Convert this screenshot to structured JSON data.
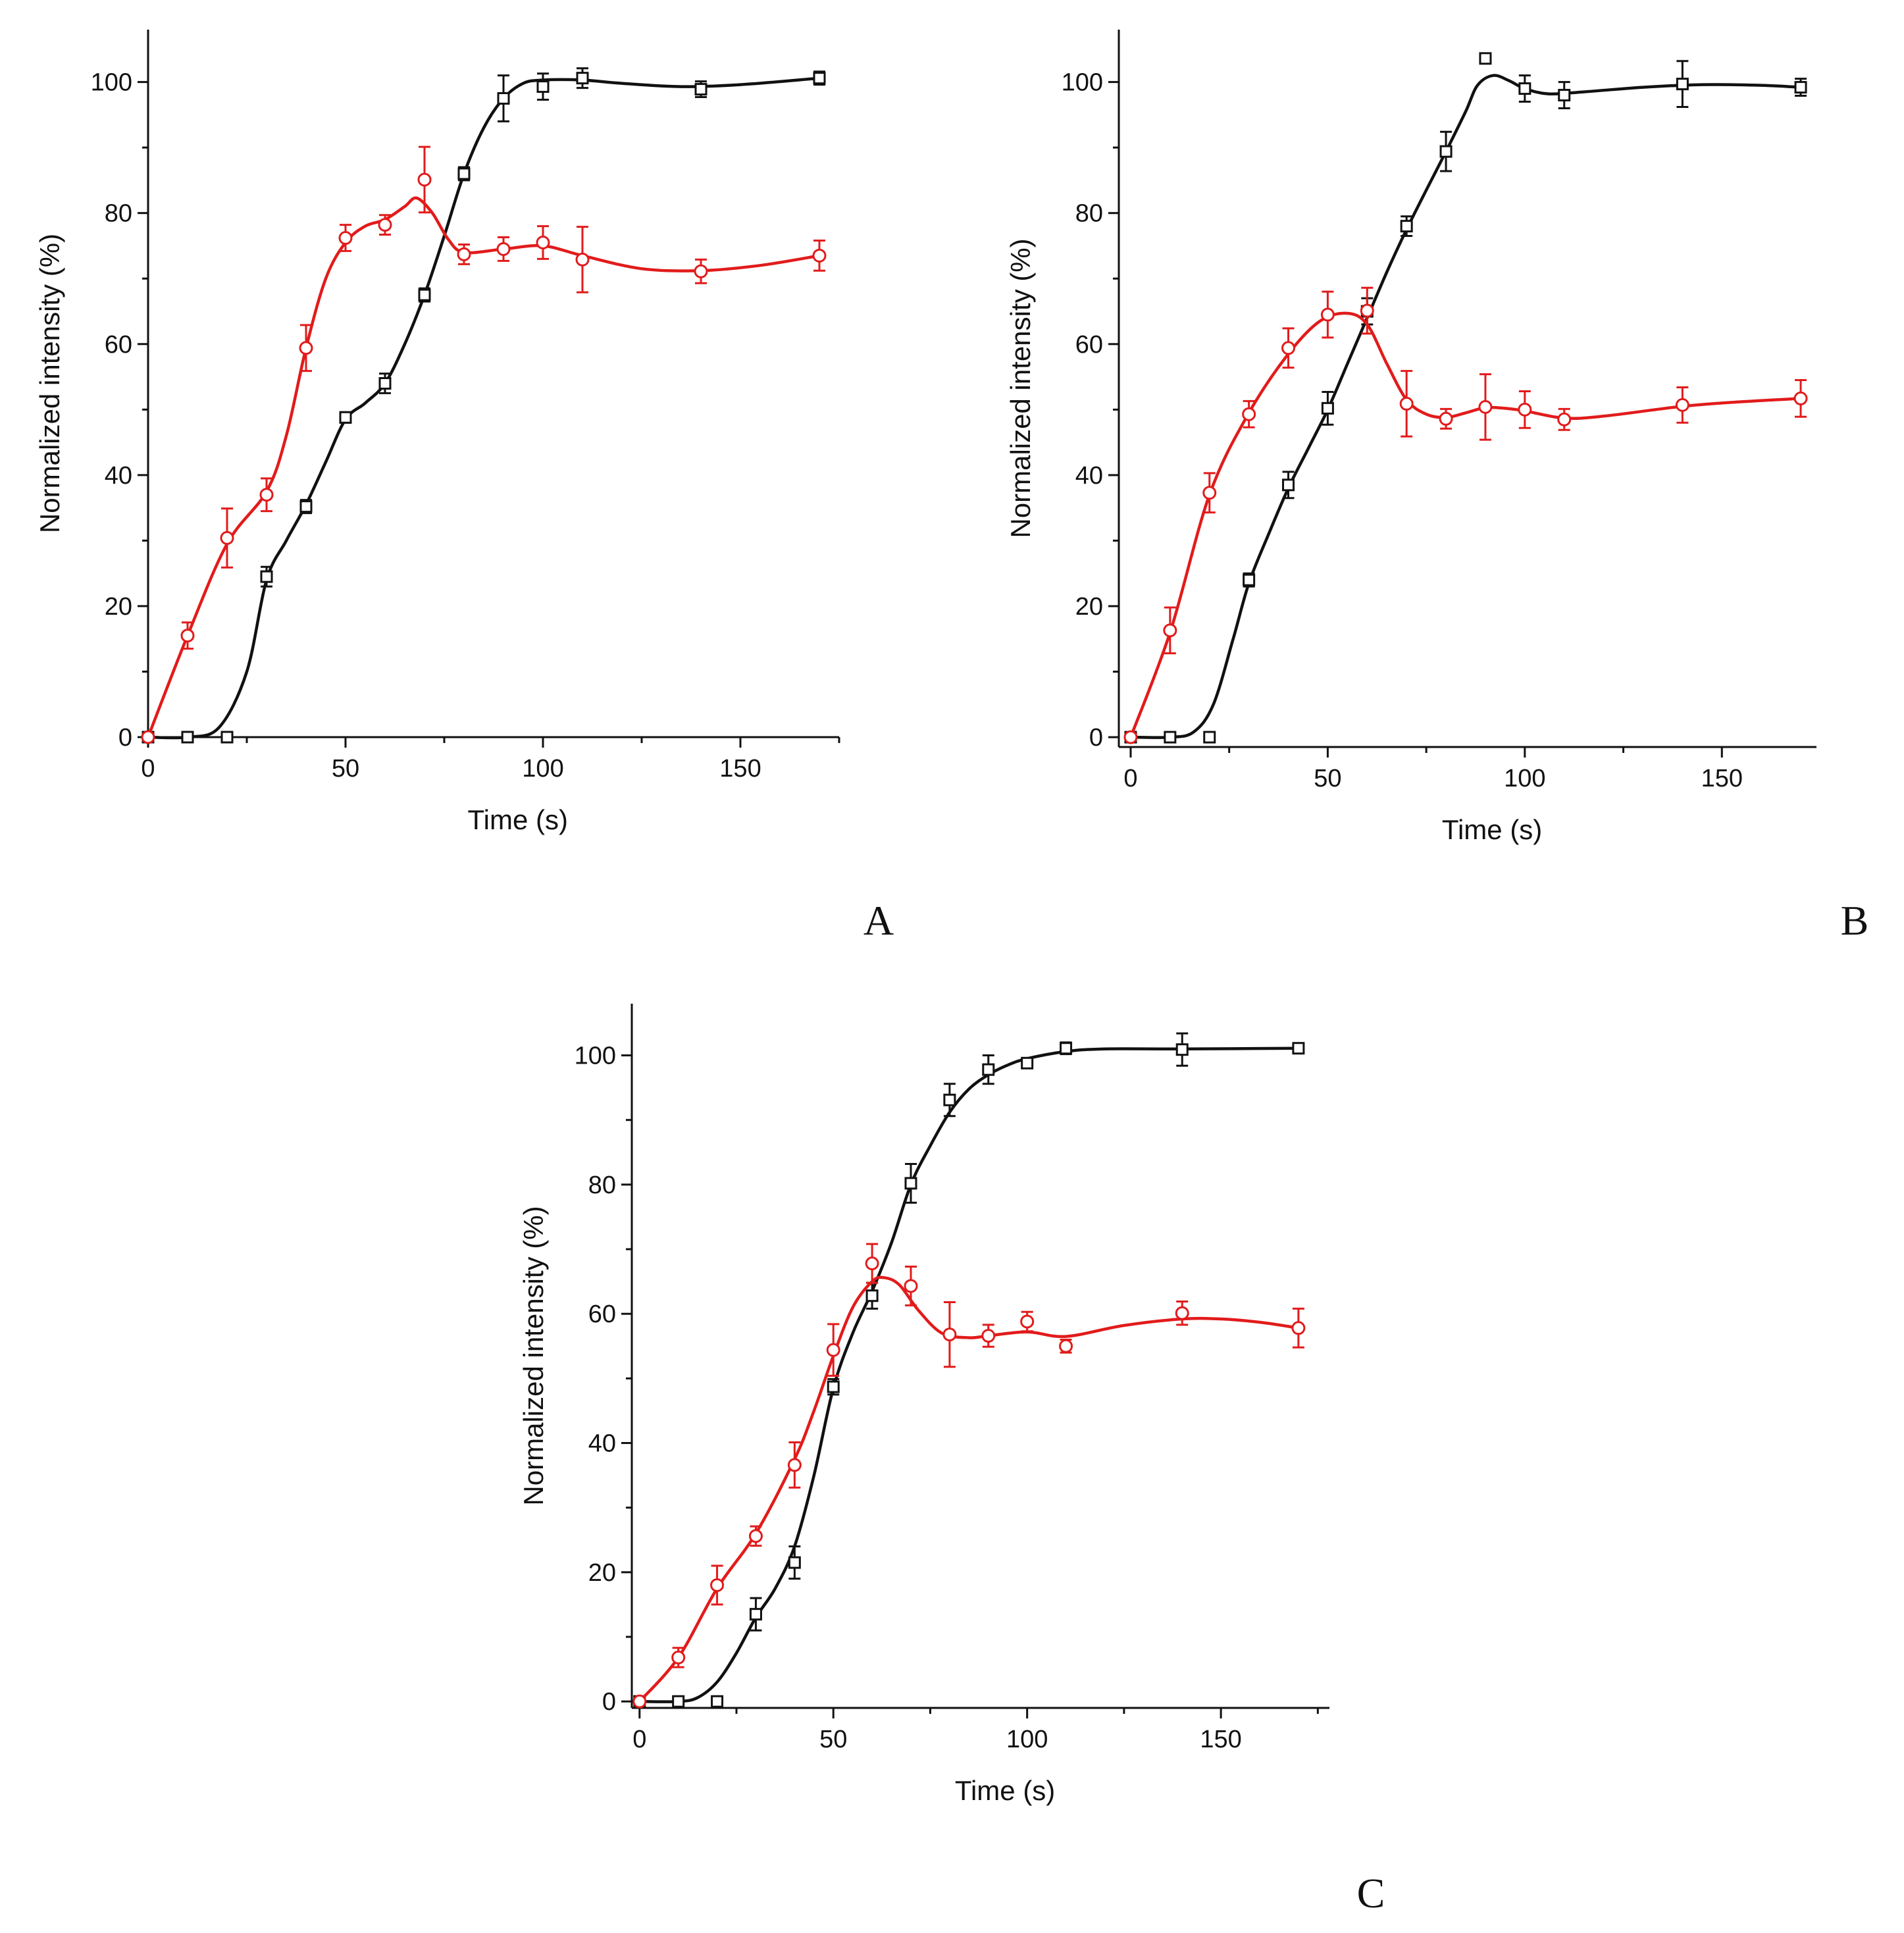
{
  "chart_data": [
    {
      "panel": "A",
      "type": "line",
      "xlabel": "Time (s)",
      "ylabel": "Normalized intensity (%)",
      "xlim": [
        0,
        175
      ],
      "ylim": [
        0,
        108
      ],
      "xticks": [
        0,
        50,
        100,
        150
      ],
      "yticks": [
        0,
        20,
        40,
        60,
        80,
        100
      ],
      "series": [
        {
          "name": "black squares",
          "color": "#111111",
          "marker": "square",
          "x": [
            0,
            10,
            20,
            30,
            40,
            50,
            60,
            70,
            80,
            90,
            100,
            110,
            140,
            170
          ],
          "y": [
            0,
            0,
            0,
            24.5,
            35.2,
            48.8,
            54.0,
            67.5,
            86.0,
            97.5,
            99.3,
            100.6,
            98.9,
            100.6
          ],
          "err": [
            0,
            0,
            0,
            1.5,
            1.0,
            0.8,
            1.5,
            1.0,
            1.0,
            3.5,
            2.0,
            1.5,
            1.2,
            1.0
          ],
          "fit": [
            [
              0,
              0
            ],
            [
              10,
              0
            ],
            [
              18,
              1.5
            ],
            [
              25,
              10
            ],
            [
              30,
              24
            ],
            [
              35,
              30
            ],
            [
              40,
              35.5
            ],
            [
              45,
              42
            ],
            [
              50,
              48.5
            ],
            [
              55,
              51
            ],
            [
              60,
              54
            ],
            [
              65,
              60
            ],
            [
              70,
              67.5
            ],
            [
              75,
              76.5
            ],
            [
              80,
              86
            ],
            [
              85,
              93
            ],
            [
              90,
              97.5
            ],
            [
              95,
              99.8
            ],
            [
              100,
              100.3
            ],
            [
              110,
              100.3
            ],
            [
              120,
              99.8
            ],
            [
              135,
              99.3
            ],
            [
              150,
              99.6
            ],
            [
              170,
              100.6
            ]
          ]
        },
        {
          "name": "red circles",
          "color": "#e21b1b",
          "marker": "circle",
          "x": [
            0,
            10,
            20,
            30,
            40,
            50,
            60,
            70,
            80,
            90,
            100,
            110,
            140,
            170
          ],
          "y": [
            0,
            15.5,
            30.4,
            37.0,
            59.4,
            76.2,
            78.2,
            85.1,
            73.7,
            74.5,
            75.5,
            72.9,
            71.1,
            73.5
          ],
          "err": [
            0,
            2.0,
            4.5,
            2.5,
            3.5,
            2.0,
            1.5,
            5.0,
            1.5,
            1.8,
            2.5,
            5.0,
            1.8,
            2.3
          ],
          "fit": [
            [
              0,
              0
            ],
            [
              10,
              15.5
            ],
            [
              20,
              29.5
            ],
            [
              30,
              37.5
            ],
            [
              35,
              46
            ],
            [
              40,
              59.4
            ],
            [
              45,
              70
            ],
            [
              50,
              75.5
            ],
            [
              55,
              78
            ],
            [
              60,
              79
            ],
            [
              65,
              81
            ],
            [
              68,
              82.3
            ],
            [
              72,
              80
            ],
            [
              76,
              76
            ],
            [
              80,
              74
            ],
            [
              90,
              74.5
            ],
            [
              100,
              75
            ],
            [
              110,
              73.5
            ],
            [
              125,
              71.5
            ],
            [
              140,
              71.2
            ],
            [
              155,
              72
            ],
            [
              170,
              73.5
            ]
          ]
        }
      ]
    },
    {
      "panel": "B",
      "type": "line",
      "xlabel": "Time (s)",
      "ylabel": "Normalized intensity (%)",
      "xlim": [
        -3,
        174
      ],
      "ylim": [
        -1.5,
        108
      ],
      "xticks": [
        0,
        50,
        100,
        150
      ],
      "yticks": [
        0,
        20,
        40,
        60,
        80,
        100
      ],
      "series": [
        {
          "name": "black squares",
          "color": "#111111",
          "marker": "square",
          "x": [
            0,
            10,
            20,
            30,
            40,
            50,
            60,
            70,
            80,
            90,
            100,
            110,
            140,
            170
          ],
          "y": [
            0,
            0,
            0,
            24.0,
            38.5,
            50.2,
            65.0,
            78.0,
            89.4,
            103.6,
            99.0,
            98.0,
            99.7,
            99.2
          ],
          "err": [
            0,
            0,
            0,
            1.0,
            2.0,
            2.5,
            2.0,
            1.5,
            3.0,
            0.6,
            2.0,
            2.0,
            3.5,
            1.3
          ],
          "fit": [
            [
              0,
              0
            ],
            [
              10,
              0
            ],
            [
              16,
              0.8
            ],
            [
              21,
              5
            ],
            [
              26,
              15
            ],
            [
              30,
              23.5
            ],
            [
              35,
              31
            ],
            [
              40,
              38
            ],
            [
              45,
              44
            ],
            [
              50,
              50
            ],
            [
              55,
              57
            ],
            [
              60,
              64
            ],
            [
              65,
              71
            ],
            [
              70,
              77.5
            ],
            [
              75,
              83.5
            ],
            [
              80,
              89.4
            ],
            [
              85,
              95.5
            ],
            [
              88,
              99.5
            ],
            [
              92,
              101
            ],
            [
              96,
              100.2
            ],
            [
              100,
              99
            ],
            [
              106,
              98.2
            ],
            [
              115,
              98.5
            ],
            [
              130,
              99.2
            ],
            [
              145,
              99.6
            ],
            [
              160,
              99.5
            ],
            [
              170,
              99.2
            ]
          ]
        },
        {
          "name": "red circles",
          "color": "#e21b1b",
          "marker": "circle",
          "x": [
            0,
            10,
            20,
            30,
            40,
            50,
            60,
            70,
            80,
            90,
            100,
            110,
            140,
            170
          ],
          "y": [
            0,
            16.3,
            37.3,
            49.3,
            59.4,
            64.5,
            65.1,
            50.9,
            48.6,
            50.4,
            50.0,
            48.5,
            50.7,
            51.7
          ],
          "err": [
            0,
            3.5,
            3.0,
            2.0,
            3.0,
            3.5,
            3.5,
            5.0,
            1.5,
            5.0,
            2.8,
            1.6,
            2.7,
            2.8
          ],
          "fit": [
            [
              0,
              0
            ],
            [
              10,
              16
            ],
            [
              20,
              37
            ],
            [
              30,
              49.5
            ],
            [
              40,
              58.5
            ],
            [
              48,
              63.5
            ],
            [
              55,
              64.7
            ],
            [
              60,
              63
            ],
            [
              65,
              57
            ],
            [
              70,
              51.5
            ],
            [
              75,
              49.3
            ],
            [
              80,
              48.8
            ],
            [
              85,
              49.5
            ],
            [
              90,
              50.3
            ],
            [
              95,
              50.2
            ],
            [
              100,
              49.8
            ],
            [
              110,
              48.7
            ],
            [
              120,
              49
            ],
            [
              140,
              50.5
            ],
            [
              155,
              51.2
            ],
            [
              170,
              51.7
            ]
          ]
        }
      ]
    },
    {
      "panel": "C",
      "type": "line",
      "xlabel": "Time (s)",
      "ylabel": "Normalized intensity (%)",
      "xlim": [
        -2,
        178
      ],
      "ylim": [
        -1,
        108
      ],
      "xticks": [
        0,
        50,
        100,
        150
      ],
      "yticks": [
        0,
        20,
        40,
        60,
        80,
        100
      ],
      "series": [
        {
          "name": "black squares",
          "color": "#111111",
          "marker": "square",
          "x": [
            0,
            10,
            20,
            30,
            40,
            50,
            60,
            70,
            80,
            90,
            100,
            110,
            140,
            170
          ],
          "y": [
            0,
            0,
            0,
            13.5,
            21.5,
            48.7,
            62.8,
            80.2,
            93.1,
            97.8,
            98.8,
            101.1,
            100.9,
            101.1
          ],
          "err": [
            0,
            0,
            0,
            2.5,
            2.5,
            1.2,
            2.0,
            3.0,
            2.5,
            2.2,
            0.6,
            0.9,
            2.5,
            0.6
          ],
          "fit": [
            [
              0,
              0
            ],
            [
              10,
              0
            ],
            [
              15,
              0.6
            ],
            [
              20,
              3
            ],
            [
              25,
              7.5
            ],
            [
              30,
              13
            ],
            [
              35,
              17.5
            ],
            [
              40,
              24
            ],
            [
              45,
              35
            ],
            [
              50,
              48.5
            ],
            [
              55,
              57
            ],
            [
              60,
              63.5
            ],
            [
              65,
              71
            ],
            [
              70,
              80
            ],
            [
              75,
              86
            ],
            [
              80,
              91.2
            ],
            [
              85,
              94.8
            ],
            [
              90,
              97
            ],
            [
              95,
              98.5
            ],
            [
              100,
              99.5
            ],
            [
              110,
              100.6
            ],
            [
              120,
              101
            ],
            [
              140,
              101
            ],
            [
              170,
              101.1
            ]
          ]
        },
        {
          "name": "red circles",
          "color": "#e21b1b",
          "marker": "circle",
          "x": [
            0,
            10,
            20,
            30,
            40,
            50,
            60,
            70,
            80,
            90,
            100,
            110,
            140,
            170
          ],
          "y": [
            0,
            6.8,
            18.0,
            25.6,
            36.6,
            54.4,
            67.8,
            64.3,
            56.8,
            56.6,
            58.8,
            55.0,
            60.1,
            57.8
          ],
          "err": [
            0,
            1.5,
            3.0,
            1.5,
            3.5,
            4.0,
            3.0,
            3.0,
            5.0,
            1.7,
            1.5,
            1.0,
            1.8,
            3.0
          ],
          "fit": [
            [
              0,
              0
            ],
            [
              10,
              6.8
            ],
            [
              20,
              17.5
            ],
            [
              30,
              26
            ],
            [
              40,
              37.5
            ],
            [
              45,
              45
            ],
            [
              50,
              53.5
            ],
            [
              55,
              61
            ],
            [
              60,
              65
            ],
            [
              63,
              65.6
            ],
            [
              67,
              64.5
            ],
            [
              72,
              60.5
            ],
            [
              78,
              57
            ],
            [
              85,
              56.3
            ],
            [
              90,
              56.6
            ],
            [
              100,
              57.2
            ],
            [
              110,
              56.5
            ],
            [
              125,
              58.2
            ],
            [
              140,
              59.2
            ],
            [
              150,
              59.2
            ],
            [
              160,
              58.7
            ],
            [
              170,
              57.8
            ]
          ]
        }
      ]
    }
  ]
}
